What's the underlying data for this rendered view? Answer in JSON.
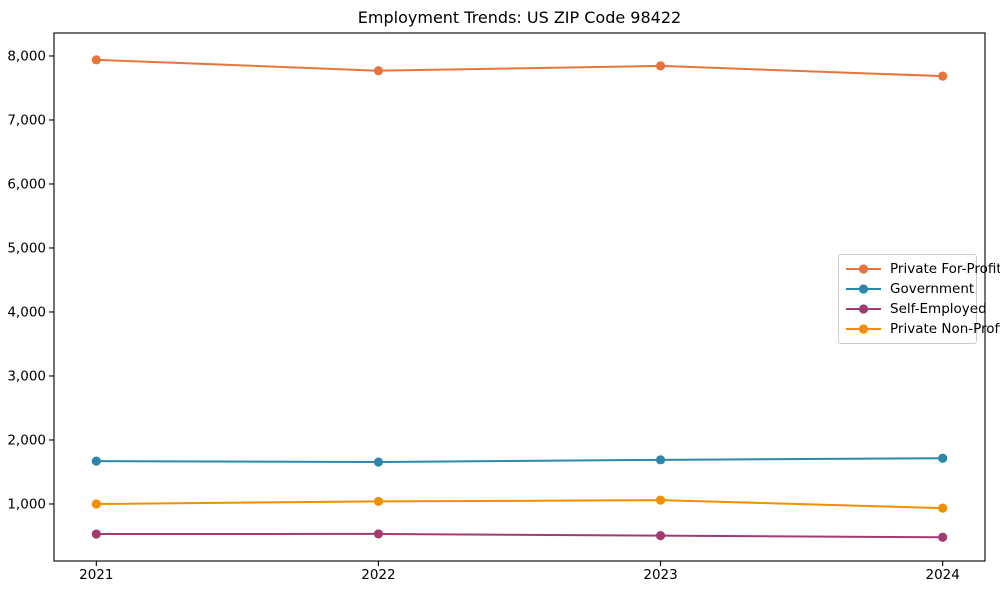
{
  "title": "Employment Trends: US ZIP Code 98422",
  "colors": {
    "spine": "#000000",
    "tick_text": "#000000",
    "legend_border": "#cccccc",
    "background": "#ffffff"
  },
  "chart_data": {
    "type": "line",
    "title": "Employment Trends: US ZIP Code 98422",
    "xlabel": "",
    "ylabel": "",
    "x": [
      2021,
      2022,
      2023,
      2024
    ],
    "x_tick_labels": [
      "2021",
      "2022",
      "2023",
      "2024"
    ],
    "y_ticks": [
      1000,
      2000,
      3000,
      4000,
      5000,
      6000,
      7000,
      8000
    ],
    "y_tick_labels": [
      "1,000",
      "2,000",
      "3,000",
      "4,000",
      "5,000",
      "6,000",
      "7,000",
      "8,000"
    ],
    "xlim": [
      2020.85,
      2024.15
    ],
    "ylim": [
      109,
      8359
    ],
    "grid": false,
    "marker": "circle",
    "legend_position": "center right",
    "series": [
      {
        "name": "Private For-Profit",
        "color": "#E8743B",
        "values": [
          7940,
          7770,
          7845,
          7685
        ]
      },
      {
        "name": "Government",
        "color": "#2E86AB",
        "values": [
          1670,
          1655,
          1690,
          1715
        ]
      },
      {
        "name": "Self-Employed",
        "color": "#A23B72",
        "values": [
          530,
          532,
          505,
          480
        ]
      },
      {
        "name": "Private Non-Profit",
        "color": "#F18F01",
        "values": [
          1000,
          1040,
          1060,
          935
        ]
      }
    ]
  }
}
